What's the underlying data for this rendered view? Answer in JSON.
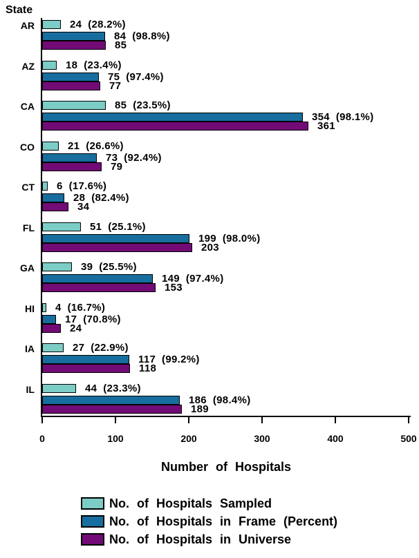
{
  "page": {
    "background": "#FFFFFF"
  },
  "chart_data": {
    "type": "bar",
    "orientation": "horizontal",
    "axis_title": "State",
    "xlabel": "Number of Hospitals",
    "xlim": [
      0,
      500
    ],
    "xticks": [
      0,
      100,
      200,
      300,
      400,
      500
    ],
    "grid": false,
    "legend_position": "bottom-left",
    "categories": [
      "AR",
      "AZ",
      "CA",
      "CO",
      "CT",
      "FL",
      "GA",
      "HI",
      "IA",
      "IL"
    ],
    "series": [
      {
        "name": "No. of Hospitals Sampled",
        "color": "#7DCDC7",
        "values": [
          24,
          18,
          85,
          21,
          6,
          51,
          39,
          4,
          27,
          44
        ],
        "percents": [
          "28.2%",
          "23.4%",
          "23.5%",
          "26.6%",
          "17.6%",
          "25.1%",
          "25.5%",
          "16.7%",
          "22.9%",
          "23.3%"
        ]
      },
      {
        "name": "No. of Hospitals in Frame (Percent)",
        "color": "#176E9E",
        "values": [
          84,
          75,
          354,
          73,
          28,
          199,
          149,
          17,
          117,
          186
        ],
        "percents": [
          "98.8%",
          "97.4%",
          "98.1%",
          "92.4%",
          "82.4%",
          "98.0%",
          "97.4%",
          "70.8%",
          "99.2%",
          "98.4%"
        ]
      },
      {
        "name": "No. of Hospitals in Universe",
        "color": "#720B76",
        "values": [
          85,
          77,
          361,
          79,
          34,
          203,
          153,
          24,
          118,
          189
        ],
        "percents": null
      }
    ]
  }
}
